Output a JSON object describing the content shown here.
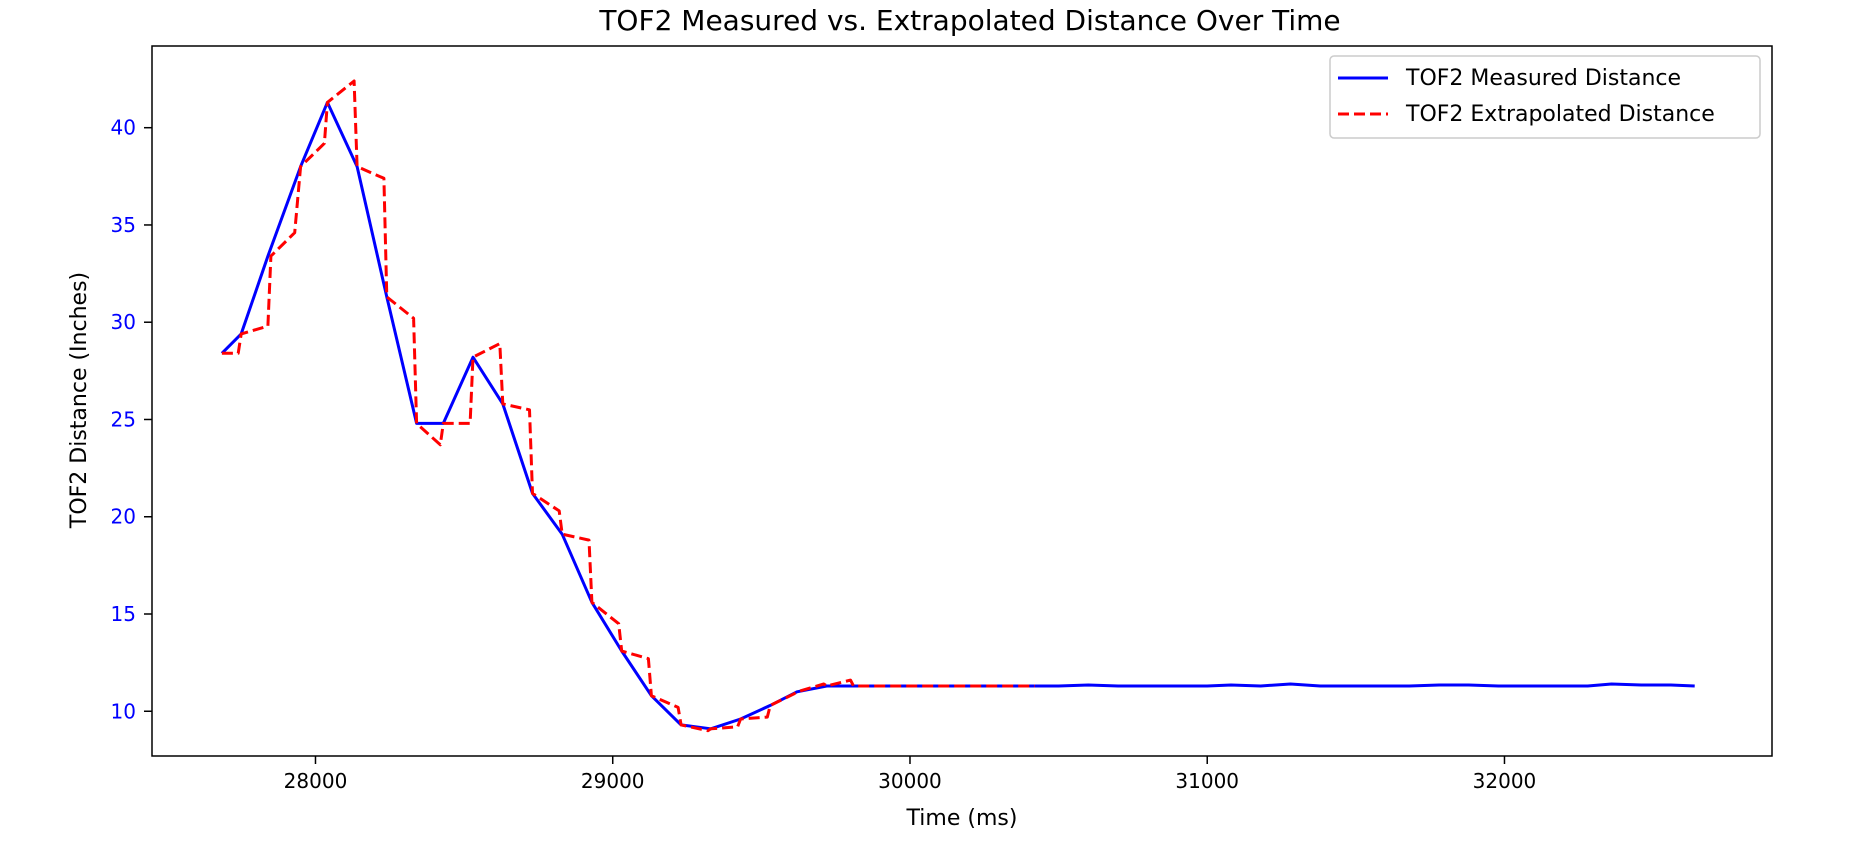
{
  "chart_data": {
    "type": "line",
    "title": "TOF2 Measured vs. Extrapolated Distance Over Time",
    "xlabel": "Time (ms)",
    "ylabel": "TOF2 Distance (Inches)",
    "xlim": [
      27450,
      32900
    ],
    "ylim": [
      7.7,
      44.2
    ],
    "xticks": [
      28000,
      29000,
      30000,
      31000,
      32000
    ],
    "yticks": [
      10,
      15,
      20,
      25,
      30,
      35,
      40
    ],
    "grid": false,
    "legend_position": "top-right",
    "colors": {
      "measured": "#0000ff",
      "extrapolated": "#ff0000",
      "ytick": "#0000ff"
    },
    "series": [
      {
        "name": "TOF2 Measured Distance",
        "style": "solid",
        "color": "#0000ff",
        "x": [
          27685,
          27750,
          27840,
          27950,
          28040,
          28140,
          28240,
          28340,
          28430,
          28530,
          28630,
          28730,
          28830,
          28930,
          29030,
          29130,
          29230,
          29330,
          29430,
          29530,
          29620,
          29720,
          29820,
          29920,
          30020,
          30120,
          30220,
          30320,
          30420,
          30500,
          30600,
          30700,
          30800,
          30900,
          31000,
          31080,
          31180,
          31280,
          31380,
          31480,
          31580,
          31680,
          31780,
          31880,
          31980,
          32080,
          32180,
          32280,
          32360,
          32460,
          32560,
          32640
        ],
        "y": [
          28.4,
          29.4,
          33.4,
          38.0,
          41.3,
          38.0,
          31.3,
          24.8,
          24.8,
          28.2,
          25.8,
          21.2,
          19.1,
          15.6,
          13.1,
          10.8,
          9.3,
          9.1,
          9.6,
          10.3,
          11.0,
          11.3,
          11.3,
          11.3,
          11.3,
          11.3,
          11.3,
          11.3,
          11.3,
          11.3,
          11.35,
          11.3,
          11.3,
          11.3,
          11.3,
          11.35,
          11.3,
          11.4,
          11.3,
          11.3,
          11.3,
          11.3,
          11.35,
          11.35,
          11.3,
          11.3,
          11.3,
          11.3,
          11.4,
          11.35,
          11.35,
          11.3
        ]
      },
      {
        "name": "TOF2 Extrapolated Distance",
        "style": "dashed",
        "color": "#ff0000",
        "x": [
          27685,
          27740,
          27750,
          27840,
          27850,
          27930,
          27950,
          28030,
          28040,
          28130,
          28140,
          28230,
          28240,
          28330,
          28340,
          28420,
          28430,
          28520,
          28530,
          28620,
          28630,
          28720,
          28730,
          28820,
          28830,
          28920,
          28930,
          29020,
          29030,
          29120,
          29130,
          29220,
          29230,
          29320,
          29330,
          29420,
          29430,
          29520,
          29530,
          29610,
          29620,
          29710,
          29720,
          29800,
          29810,
          30420
        ],
        "y": [
          28.4,
          28.4,
          29.4,
          29.8,
          33.4,
          34.6,
          38.0,
          39.2,
          41.3,
          42.4,
          38.0,
          37.4,
          31.3,
          30.2,
          24.8,
          23.7,
          24.8,
          24.8,
          28.2,
          28.9,
          25.8,
          25.5,
          21.2,
          20.3,
          19.1,
          18.8,
          15.6,
          14.5,
          13.1,
          12.7,
          10.8,
          10.2,
          9.3,
          9.0,
          9.1,
          9.2,
          9.6,
          9.7,
          10.3,
          10.9,
          11.0,
          11.4,
          11.3,
          11.6,
          11.3,
          11.3
        ]
      }
    ]
  }
}
